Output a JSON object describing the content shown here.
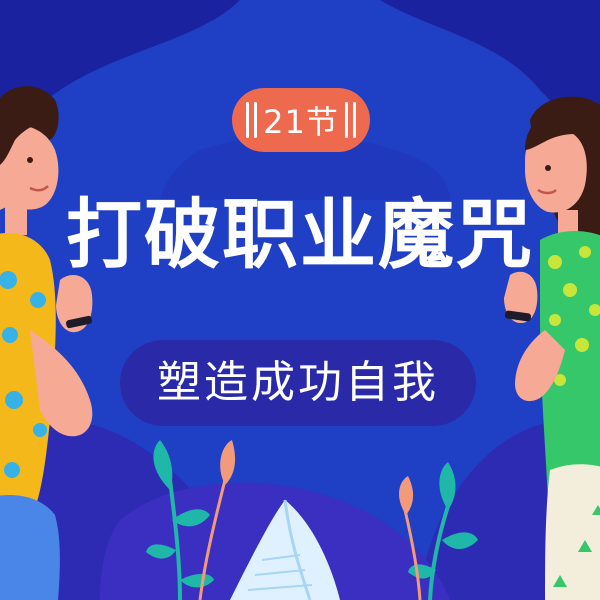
{
  "badge": {
    "text": "21节"
  },
  "title": "打破职业魔咒",
  "subtitle": "塑造成功自我",
  "colors": {
    "background": "#1f3fc4",
    "dark_blob": "#1a22a0",
    "purple_wave": "#3a2fc0",
    "badge": "#ee6a4f",
    "pill": "#2a2aa8",
    "left_shirt": "#f5b81a",
    "right_shirt": "#36c76b",
    "skin": "#f6a995",
    "hair": "#3a1c14"
  },
  "icons": [
    "left-person-illustration",
    "right-person-illustration",
    "leaf-icon",
    "paper-icon"
  ]
}
